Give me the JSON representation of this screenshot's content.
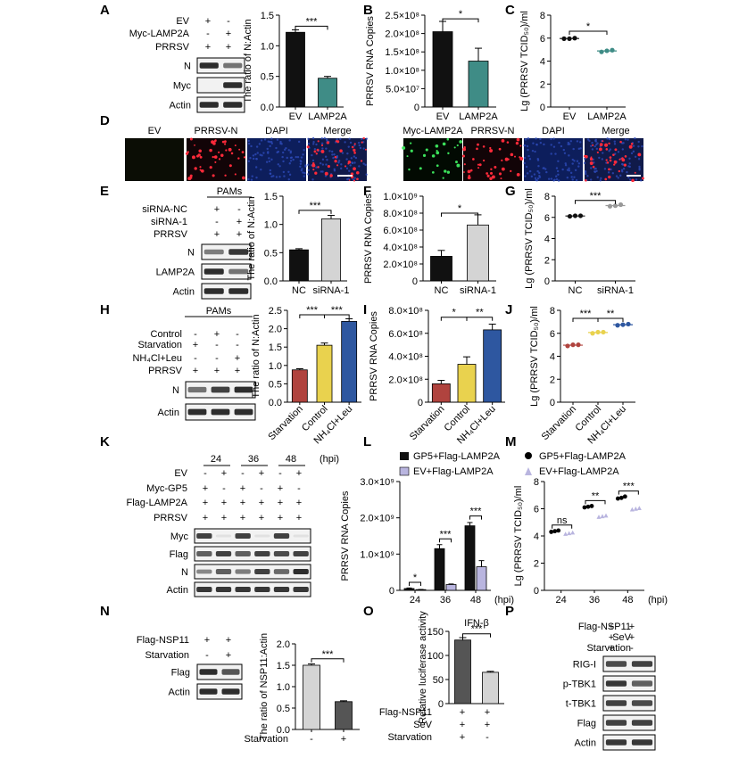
{
  "colors": {
    "black": "#111111",
    "teal": "#3f8c86",
    "gray": "#d4d4d4",
    "red": "#b0433e",
    "yellow": "#e9d24e",
    "blue": "#2e57a0",
    "lav": "#b9b5df",
    "dark": "#555555"
  },
  "panels": {
    "A": "A",
    "B": "B",
    "C": "C",
    "D": "D",
    "E": "E",
    "F": "F",
    "G": "G",
    "H": "H",
    "I": "I",
    "J": "J",
    "K": "K",
    "L": "L",
    "M": "M",
    "N": "N",
    "O": "O",
    "P": "P"
  },
  "A": {
    "conds": [
      "EV",
      "Myc-LAMP2A",
      "PRRSV"
    ],
    "signs": [
      [
        "+",
        "-"
      ],
      [
        "-",
        "+"
      ],
      [
        "+",
        "+"
      ]
    ],
    "blots": [
      "N",
      "Myc",
      "Actin"
    ]
  },
  "E": {
    "header": "PAMs",
    "conds": [
      "siRNA-NC",
      "siRNA-1",
      "PRRSV"
    ],
    "signs": [
      [
        "+",
        "-"
      ],
      [
        "-",
        "+"
      ],
      [
        "+",
        "+"
      ]
    ],
    "blots": [
      "N",
      "LAMP2A",
      "Actin"
    ]
  },
  "H": {
    "header": "PAMs",
    "conds": [
      "Control",
      "Starvation",
      "NH4Cl+Leu",
      "PRRSV"
    ],
    "signs": [
      [
        "-",
        "+",
        "-"
      ],
      [
        "+",
        "-",
        "-"
      ],
      [
        "-",
        "-",
        "+"
      ],
      [
        "+",
        "+",
        "+"
      ]
    ],
    "blots": [
      "N",
      "Actin"
    ]
  },
  "K": {
    "times": [
      "24",
      "36",
      "48"
    ],
    "hpi": "(hpi)",
    "conds": [
      "EV",
      "Myc-GP5",
      "Flag-LAMP2A",
      "PRRSV"
    ],
    "signs": [
      [
        "-",
        "+",
        "-",
        "+",
        "-",
        "+"
      ],
      [
        "+",
        "-",
        "+",
        "-",
        "+",
        "-"
      ],
      [
        "+",
        "+",
        "+",
        "+",
        "+",
        "+"
      ],
      [
        "+",
        "+",
        "+",
        "+",
        "+",
        "+"
      ]
    ],
    "blots": [
      "Myc",
      "Flag",
      "N",
      "Actin"
    ]
  },
  "N": {
    "conds": [
      "Flag-NSP11",
      "Starvation"
    ],
    "signs": [
      [
        "+",
        "+"
      ],
      [
        "-",
        "+"
      ]
    ],
    "blots": [
      "Flag",
      "Actin"
    ]
  },
  "P": {
    "conds": [
      "Flag-NSP11",
      "SeV",
      "Starvation"
    ],
    "signs": [
      [
        "+",
        "+"
      ],
      [
        "+",
        "+"
      ],
      [
        "+",
        "-"
      ]
    ],
    "blots": [
      "RIG-I",
      "p-TBK1",
      "t-TBK1",
      "Flag",
      "Actin"
    ]
  },
  "D": {
    "row1": [
      "EV",
      "PRRSV-N",
      "DAPI",
      "Merge"
    ],
    "row2": [
      "Myc-LAMP2A",
      "PRRSV-N",
      "DAPI",
      "Merge"
    ]
  },
  "sig": {
    "s1": "***",
    "s2": "*",
    "s3": "*",
    "s4": "***",
    "s5": "*",
    "s6": "***",
    "s7": "***",
    "s8": "***",
    "s9": "*",
    "s10": "**",
    "s11": "***",
    "s12": "**",
    "s13": "*",
    "s14": "***",
    "s15": "***",
    "s16": "ns",
    "s17": "**",
    "s18": "***",
    "s19": "***",
    "s20": "***"
  },
  "chart_data": [
    {
      "id": "A",
      "type": "bar",
      "categories": [
        "EV",
        "LAMP2A"
      ],
      "values": [
        1.22,
        0.47
      ],
      "errors": [
        0.04,
        0.03
      ],
      "ylabel": "The ratio of N:Actin",
      "ylim": [
        0,
        1.5
      ],
      "yticks": [
        "0.0",
        "0.5",
        "1.0",
        "1.5"
      ]
    },
    {
      "id": "B",
      "type": "bar",
      "categories": [
        "EV",
        "LAMP2A"
      ],
      "values": [
        205000000,
        125000000
      ],
      "errors": [
        28000000,
        35000000
      ],
      "ylabel": "PRRSV RNA Copies",
      "ylim": [
        0,
        250000000
      ],
      "yticks": [
        "0",
        "5.0×10⁷",
        "1.0×10⁸",
        "1.5×10⁸",
        "2.0×10⁸",
        "2.5×10⁸"
      ]
    },
    {
      "id": "C",
      "type": "scatter",
      "categories": [
        "EV",
        "LAMP2A"
      ],
      "values": [
        [
          5.95,
          5.95,
          6.0
        ],
        [
          4.8,
          4.9,
          4.95
        ]
      ],
      "ylabel": "Lg (PRRSV TCID₅₀)/ml",
      "ylim": [
        0,
        8
      ],
      "yticks": [
        "0",
        "2",
        "4",
        "6",
        "8"
      ]
    },
    {
      "id": "E",
      "type": "bar",
      "categories": [
        "NC",
        "siRNA-1"
      ],
      "values": [
        0.55,
        1.1
      ],
      "errors": [
        0.02,
        0.06
      ],
      "ylabel": "The ratio of N:Actin",
      "ylim": [
        0,
        1.5
      ],
      "yticks": [
        "0.0",
        "0.5",
        "1.0",
        "1.5"
      ]
    },
    {
      "id": "F",
      "type": "bar",
      "categories": [
        "NC",
        "siRNA-1"
      ],
      "values": [
        290000000,
        660000000
      ],
      "errors": [
        70000000,
        120000000
      ],
      "ylabel": "PRRSV RNA Copies",
      "ylim": [
        0,
        1000000000
      ],
      "yticks": [
        "0",
        "2.0×10⁸",
        "4.0×10⁸",
        "6.0×10⁸",
        "8.0×10⁸",
        "1.0×10⁹"
      ]
    },
    {
      "id": "G",
      "type": "scatter",
      "categories": [
        "NC",
        "siRNA-1"
      ],
      "values": [
        [
          6.1,
          6.15,
          6.15
        ],
        [
          7.05,
          7.1,
          7.2
        ]
      ],
      "ylabel": "Lg (PRRSV TCID₅₀)/ml",
      "ylim": [
        0,
        8
      ],
      "yticks": [
        "0",
        "2",
        "4",
        "6",
        "8"
      ]
    },
    {
      "id": "H",
      "type": "bar",
      "categories": [
        "Starvation",
        "Control",
        "NH₄Cl+Leu"
      ],
      "values": [
        0.88,
        1.55,
        2.2
      ],
      "errors": [
        0.03,
        0.06,
        0.07
      ],
      "ylabel": "The ratio of N:Actin",
      "ylim": [
        0,
        2.5
      ],
      "yticks": [
        "0.0",
        "0.5",
        "1.0",
        "1.5",
        "2.0",
        "2.5"
      ]
    },
    {
      "id": "I",
      "type": "bar",
      "categories": [
        "Starvation",
        "Control",
        "NH₄Cl+Leu"
      ],
      "values": [
        160000000,
        330000000,
        630000000
      ],
      "errors": [
        30000000,
        65000000,
        50000000
      ],
      "ylabel": "PRRSV RNA Copies",
      "ylim": [
        0,
        800000000
      ],
      "yticks": [
        "0",
        "2.0×10⁸",
        "4.0×10⁸",
        "6.0×10⁸",
        "8.0×10⁸"
      ]
    },
    {
      "id": "J",
      "type": "scatter",
      "categories": [
        "Starvation",
        "Control",
        "NH₄Cl+Leu"
      ],
      "values": [
        [
          4.9,
          5.0,
          5.0
        ],
        [
          6.0,
          6.1,
          6.1
        ],
        [
          6.7,
          6.75,
          6.8
        ]
      ],
      "ylabel": "Lg (PRRSV TCID₅₀)/ml",
      "ylim": [
        0,
        8
      ],
      "yticks": [
        "0",
        "2",
        "4",
        "6",
        "8"
      ]
    },
    {
      "id": "L",
      "type": "bar",
      "categories": [
        "24",
        "36",
        "48"
      ],
      "xlabel": "(hpi)",
      "series": [
        {
          "name": "GP5+Flag-LAMP2A",
          "values": [
            50000000,
            1150000000,
            1780000000
          ],
          "errors": [
            15000000,
            110000000,
            90000000
          ]
        },
        {
          "name": "EV+Flag-LAMP2A",
          "values": [
            20000000,
            160000000,
            650000000
          ],
          "errors": [
            5000000,
            15000000,
            170000000
          ]
        }
      ],
      "ylabel": "PRRSV RNA Copies",
      "ylim": [
        0,
        3000000000
      ],
      "yticks": [
        "0",
        "1.0×10⁹",
        "2.0×10⁹",
        "3.0×10⁹"
      ]
    },
    {
      "id": "M",
      "type": "scatter",
      "categories": [
        "24",
        "36",
        "48"
      ],
      "xlabel": "(hpi)",
      "series": [
        {
          "name": "GP5+Flag-LAMP2A",
          "values": [
            [
              4.3,
              4.35,
              4.4
            ],
            [
              6.1,
              6.15,
              6.2
            ],
            [
              6.75,
              6.8,
              6.9
            ]
          ]
        },
        {
          "name": "EV+Flag-LAMP2A",
          "values": [
            [
              4.15,
              4.2,
              4.25
            ],
            [
              5.4,
              5.45,
              5.5
            ],
            [
              5.95,
              6.0,
              6.05
            ]
          ]
        }
      ],
      "ylabel": "Lg (PRRSV TCID₅₀)/ml",
      "ylim": [
        0,
        8
      ],
      "yticks": [
        "0",
        "2",
        "4",
        "6",
        "8"
      ]
    },
    {
      "id": "N",
      "type": "bar",
      "categories": [
        "-",
        "+"
      ],
      "xlabel": "Starvation",
      "values": [
        1.5,
        0.65
      ],
      "errors": [
        0.03,
        0.02
      ],
      "ylabel": "The ratio of NSP11:Actin",
      "ylim": [
        0,
        2.0
      ],
      "yticks": [
        "0.0",
        "0.5",
        "1.0",
        "1.5",
        "2.0"
      ]
    },
    {
      "id": "O",
      "type": "bar",
      "title": "IFN-β",
      "categories": [
        "1",
        "2"
      ],
      "values": [
        132,
        65
      ],
      "errors": [
        5,
        2
      ],
      "ylabel": "Relative luciferase activity",
      "ylim": [
        0,
        150
      ],
      "yticks": [
        "0",
        "50",
        "100",
        "150"
      ]
    }
  ],
  "O_table": {
    "conds": [
      "Flag-NSP11",
      "SeV",
      "Starvation"
    ],
    "signs": [
      [
        "+",
        "+"
      ],
      [
        "+",
        "+"
      ],
      [
        "+",
        "-"
      ]
    ]
  }
}
